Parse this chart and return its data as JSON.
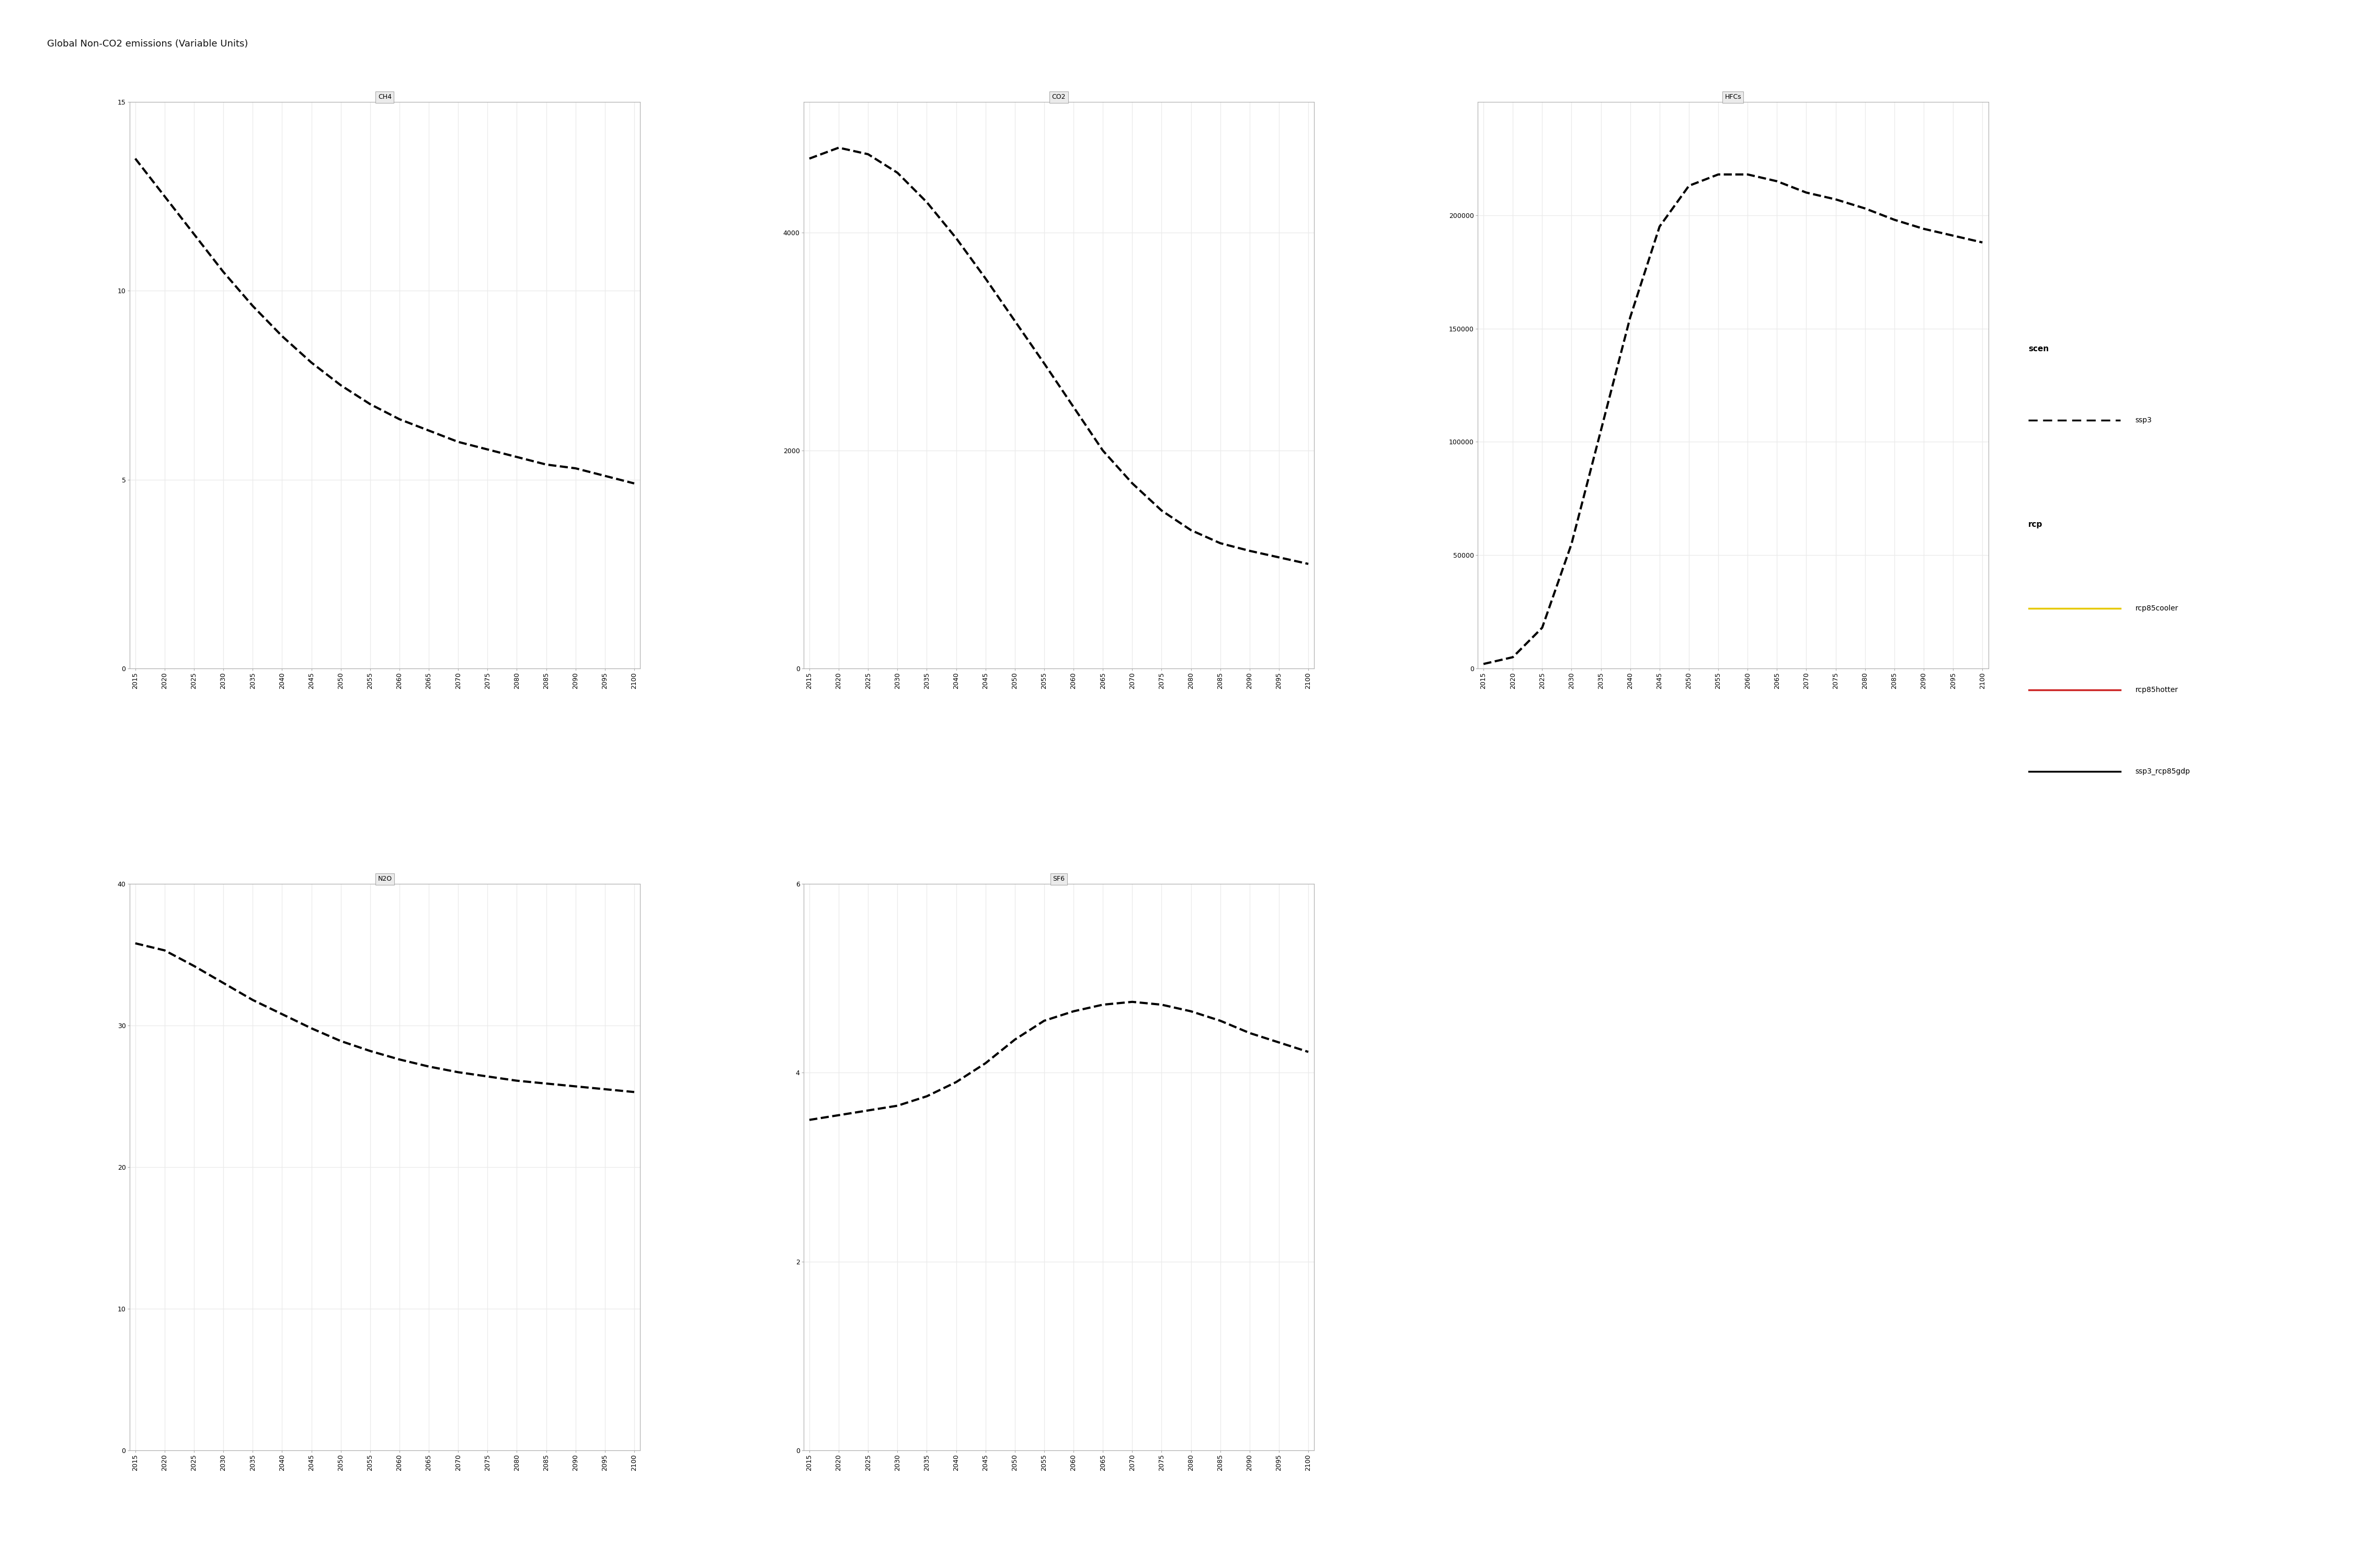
{
  "title": "Global Non-CO2 emissions (Variable Units)",
  "panels": {
    "CH4": {
      "years": [
        2015,
        2020,
        2025,
        2030,
        2035,
        2040,
        2045,
        2050,
        2055,
        2060,
        2065,
        2070,
        2075,
        2080,
        2085,
        2090,
        2095,
        2100
      ],
      "values": [
        13.5,
        12.5,
        11.5,
        10.5,
        9.6,
        8.8,
        8.1,
        7.5,
        7.0,
        6.6,
        6.3,
        6.0,
        5.8,
        5.6,
        5.4,
        5.3,
        5.1,
        4.9
      ],
      "ylim": [
        0,
        15
      ],
      "yticks": [
        0,
        5,
        10,
        15
      ],
      "yticklabels": [
        "0",
        "5",
        "10",
        "15"
      ]
    },
    "CO2": {
      "years": [
        2015,
        2020,
        2025,
        2030,
        2035,
        2040,
        2045,
        2050,
        2055,
        2060,
        2065,
        2070,
        2075,
        2080,
        2085,
        2090,
        2095,
        2100
      ],
      "values": [
        4680,
        4780,
        4720,
        4550,
        4280,
        3950,
        3580,
        3190,
        2800,
        2400,
        2000,
        1700,
        1450,
        1270,
        1150,
        1080,
        1020,
        960
      ],
      "ylim": [
        0,
        5200
      ],
      "yticks": [
        0,
        2000,
        4000
      ],
      "yticklabels": [
        "0",
        "2000",
        "4000"
      ]
    },
    "HFCs": {
      "years": [
        2015,
        2020,
        2025,
        2030,
        2035,
        2040,
        2045,
        2050,
        2055,
        2060,
        2065,
        2070,
        2075,
        2080,
        2085,
        2090,
        2095,
        2100
      ],
      "values": [
        2000,
        5000,
        18000,
        55000,
        105000,
        155000,
        195000,
        213000,
        218000,
        218000,
        215000,
        210000,
        207000,
        203000,
        198000,
        194000,
        191000,
        188000
      ],
      "ylim": [
        0,
        250000
      ],
      "yticks": [
        0,
        50000,
        100000,
        150000,
        200000
      ],
      "yticklabels": [
        "0",
        "50000",
        "100000",
        "150000",
        "200000"
      ]
    },
    "N2O": {
      "years": [
        2015,
        2020,
        2025,
        2030,
        2035,
        2040,
        2045,
        2050,
        2055,
        2060,
        2065,
        2070,
        2075,
        2080,
        2085,
        2090,
        2095,
        2100
      ],
      "values": [
        35.8,
        35.3,
        34.2,
        33.0,
        31.8,
        30.8,
        29.8,
        28.9,
        28.2,
        27.6,
        27.1,
        26.7,
        26.4,
        26.1,
        25.9,
        25.7,
        25.5,
        25.3
      ],
      "ylim": [
        0,
        40
      ],
      "yticks": [
        0,
        10,
        20,
        30,
        40
      ],
      "yticklabels": [
        "0",
        "10",
        "20",
        "30",
        "40"
      ]
    },
    "SF6": {
      "years": [
        2015,
        2020,
        2025,
        2030,
        2035,
        2040,
        2045,
        2050,
        2055,
        2060,
        2065,
        2070,
        2075,
        2080,
        2085,
        2090,
        2095,
        2100
      ],
      "values": [
        3.5,
        3.55,
        3.6,
        3.65,
        3.75,
        3.9,
        4.1,
        4.35,
        4.55,
        4.65,
        4.72,
        4.75,
        4.72,
        4.65,
        4.55,
        4.42,
        4.32,
        4.22
      ],
      "ylim": [
        0,
        6
      ],
      "yticks": [
        0,
        2,
        4,
        6
      ],
      "yticklabels": [
        "0",
        "2",
        "4",
        "6"
      ]
    }
  },
  "legend": {
    "scen_label": "scen",
    "scen_entries": [
      {
        "label": "ssp3",
        "linestyle": "--",
        "color": "black"
      }
    ],
    "rcp_label": "rcp",
    "rcp_entries": [
      {
        "label": "rcp85cooler",
        "color": "#E6C906"
      },
      {
        "label": "rcp85hotter",
        "color": "#CC2222"
      },
      {
        "label": "ssp3_rcp85gdp",
        "color": "#000000"
      }
    ]
  },
  "line_color": "#000000",
  "line_style": "--",
  "line_width": 3.0,
  "dash_capstyle": "butt",
  "grid_color": "#ebebeb",
  "panel_bg": "#FFFFFF",
  "panel_header_bg": "#EBEBEB",
  "fig_bg": "#FFFFFF",
  "title_fontsize": 13,
  "tick_fontsize": 9,
  "panel_title_fontsize": 9,
  "xtick_years": [
    2015,
    2020,
    2025,
    2030,
    2035,
    2040,
    2045,
    2050,
    2055,
    2060,
    2065,
    2070,
    2075,
    2080,
    2085,
    2090,
    2095,
    2100
  ]
}
